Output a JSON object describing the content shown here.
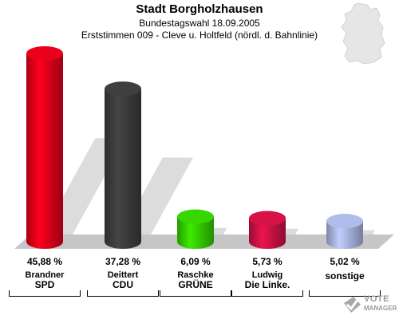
{
  "header": {
    "title": "Stadt Borgholzhausen",
    "subtitle": "Bundestagswahl 18.09.2005",
    "subtitle2": "Erststimmen 009 - Cleve u. Holtfeld (nördl. d. Bahnlinie)"
  },
  "chart_data": {
    "type": "bar",
    "categories": [
      "SPD",
      "CDU",
      "GRÜNE",
      "Die Linke.",
      "sonstige"
    ],
    "candidates": [
      "Brandner",
      "Deittert",
      "Raschke",
      "Ludwig",
      ""
    ],
    "values": [
      45.88,
      37.28,
      6.09,
      5.73,
      5.02
    ],
    "value_labels": [
      "45,88 %",
      "37,28 %",
      "6,09 %",
      "5,73 %",
      "5,02 %"
    ],
    "colors": [
      "#e0001a",
      "#3c3c3c",
      "#33cc00",
      "#cc1144",
      "#a8b4e0"
    ],
    "grid": false,
    "legend": "none"
  },
  "logo": {
    "line1": "VOTE",
    "line2": "MANAGER",
    "icon": "ballot-check-icon"
  },
  "map_icon": "germany-map-icon"
}
